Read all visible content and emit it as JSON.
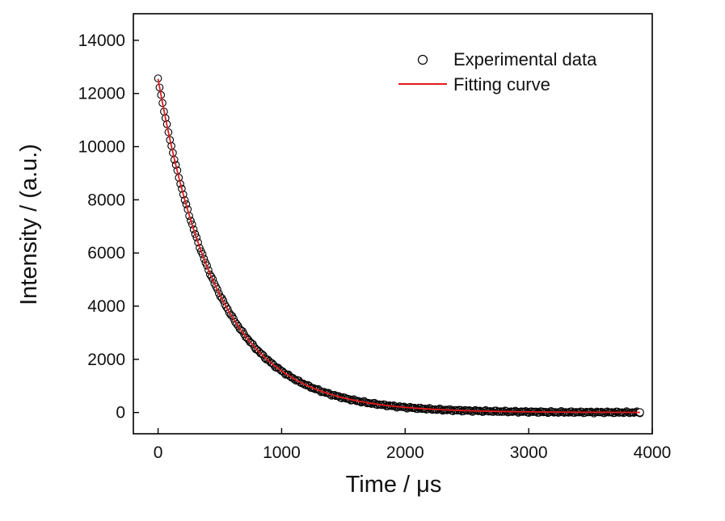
{
  "chart_data": {
    "type": "scatter",
    "title": "",
    "xlabel": "Time / μs",
    "ylabel": "Intensity / (a.u.)",
    "xlim": [
      -200,
      4000
    ],
    "ylim": [
      -800,
      15000
    ],
    "xticks": [
      0,
      1000,
      2000,
      3000,
      4000
    ],
    "yticks": [
      0,
      2000,
      4000,
      6000,
      8000,
      10000,
      12000,
      14000
    ],
    "xtick_labels": [
      "0",
      "1000",
      "2000",
      "3000",
      "4000"
    ],
    "ytick_labels": [
      "0",
      "2000",
      "4000",
      "6000",
      "8000",
      "10000",
      "12000",
      "14000"
    ],
    "legend_position": "top-right",
    "series": [
      {
        "name": "Experimental data",
        "kind": "scatter",
        "marker": "open-circle",
        "color": "#000000",
        "x_start": 0,
        "x_end": 3900,
        "x_step": 12,
        "amplitude": 12550,
        "decay_constant": 480,
        "offset": 0
      },
      {
        "name": "Fitting curve",
        "kind": "line",
        "color": "#e41a1c",
        "x_start": 0,
        "x_end": 3900,
        "x_step": 20,
        "amplitude": 12550,
        "decay_constant": 480,
        "offset": 0
      }
    ]
  }
}
